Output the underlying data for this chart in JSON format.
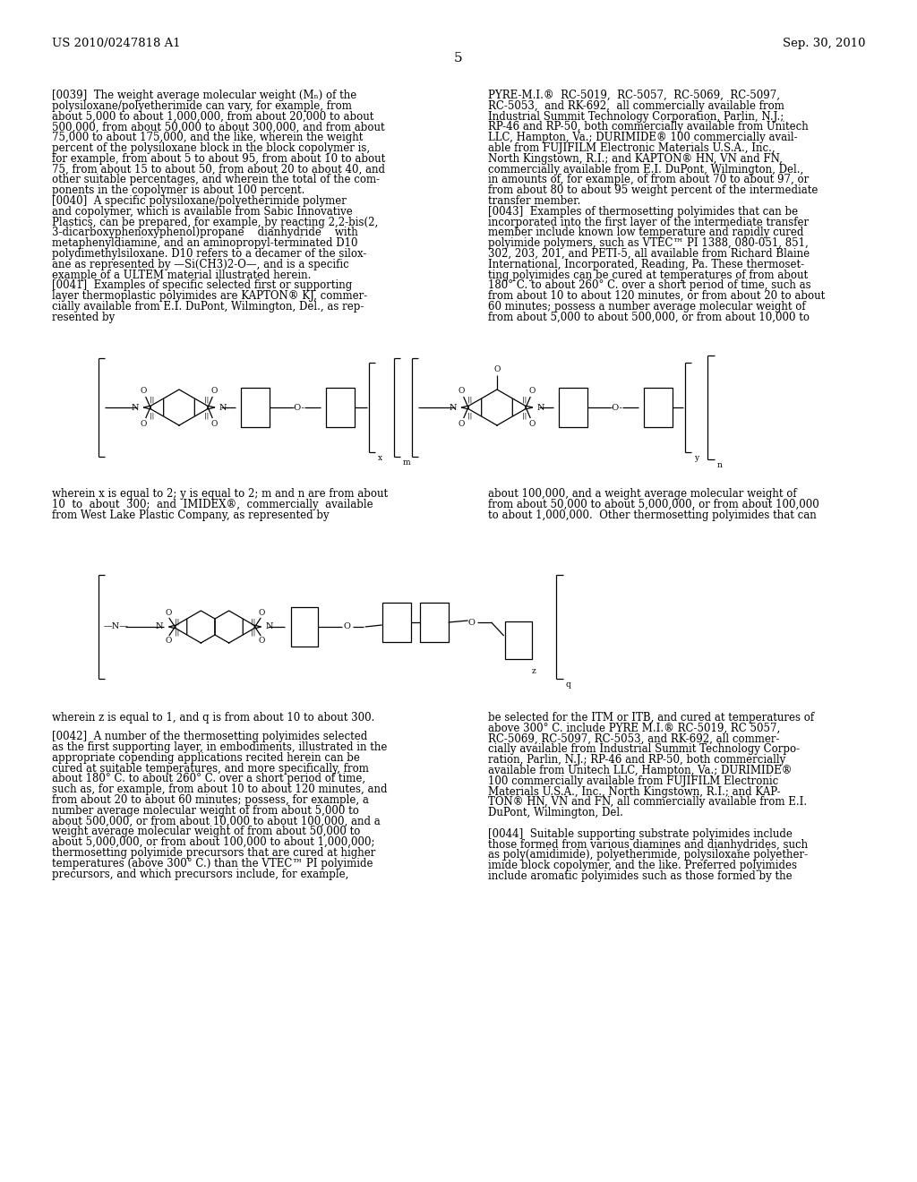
{
  "header_left": "US 2010/0247818 A1",
  "header_right": "Sep. 30, 2010",
  "page_number": "5",
  "bg": "#ffffff",
  "fs_body": 8.5,
  "fs_header": 9.5,
  "lw": 0.9
}
